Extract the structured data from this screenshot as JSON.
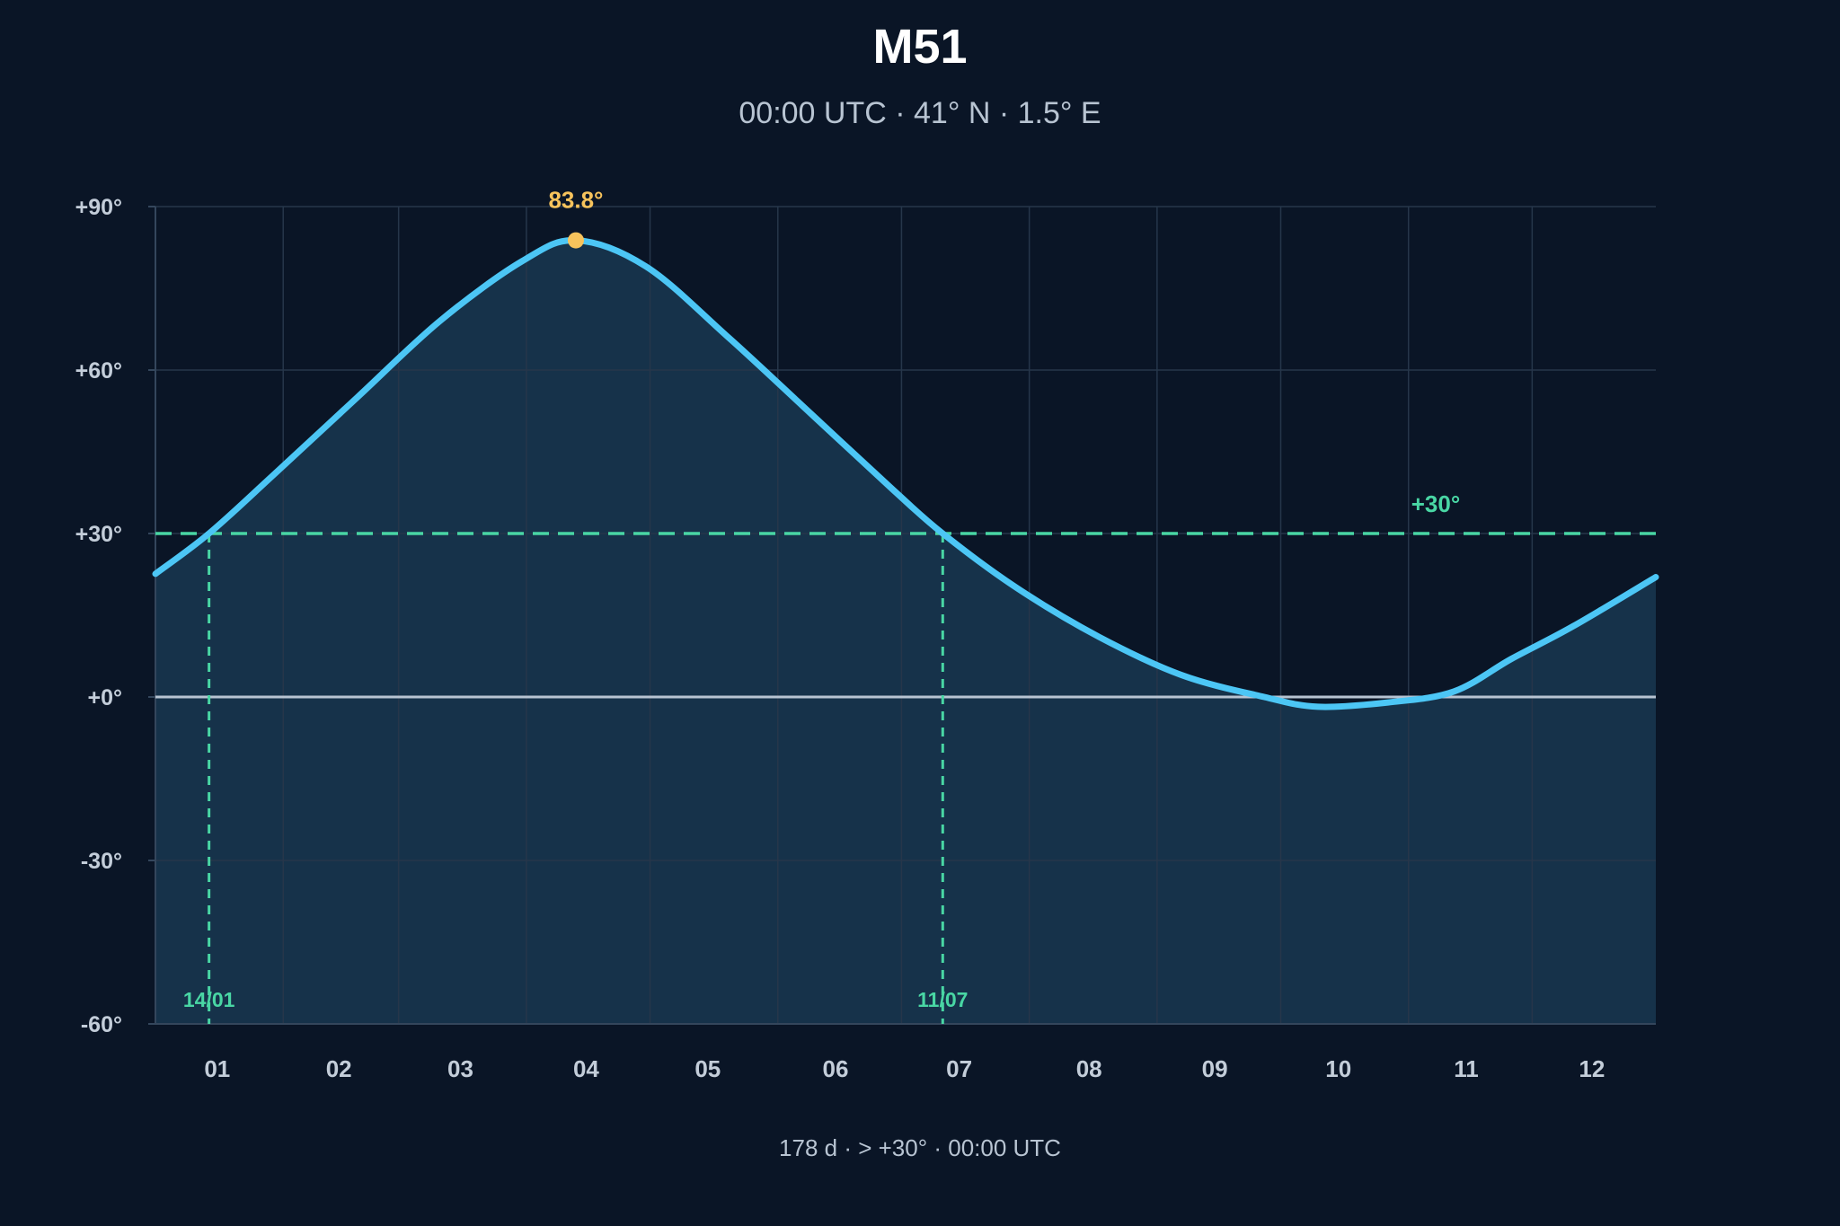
{
  "chart_data": {
    "type": "area",
    "title": "M51",
    "subtitle": "00:00 UTC · 41° N · 1.5° E",
    "footer": "178 d · > +30° · 00:00 UTC",
    "x_labels": [
      "01",
      "02",
      "03",
      "04",
      "05",
      "06",
      "07",
      "08",
      "09",
      "10",
      "11",
      "12"
    ],
    "y_ticks": [
      {
        "value": 90,
        "label": "+90°"
      },
      {
        "value": 60,
        "label": "+60°"
      },
      {
        "value": 30,
        "label": "+30°"
      },
      {
        "value": 0,
        "label": "+0°"
      },
      {
        "value": -30,
        "label": "-30°"
      },
      {
        "value": -60,
        "label": "-60°"
      }
    ],
    "ylim": [
      -60,
      90
    ],
    "xlim_day_of_year": [
      1,
      365
    ],
    "series": [
      {
        "x_day_of_year": [
          1,
          14,
          30,
          50,
          70,
          90,
          103,
          120,
          140,
          160,
          180,
          192,
          210,
          230,
          250,
          270,
          283,
          300,
          316,
          330,
          345,
          365
        ],
        "values": [
          22.6,
          30,
          41,
          55,
          69,
          80,
          83.8,
          79,
          66,
          52,
          38,
          30,
          20,
          11,
          4,
          0,
          -1.8,
          -1,
          1,
          7,
          13,
          22
        ]
      }
    ],
    "peak": {
      "x_day_of_year": 103,
      "value": 83.8,
      "label": "83.8°"
    },
    "threshold": {
      "value": 30,
      "label": "+30°"
    },
    "crossings": [
      {
        "x_day_of_year": 14,
        "label": "14/01"
      },
      {
        "x_day_of_year": 192,
        "label": "11/07"
      }
    ],
    "grid": true,
    "colors": {
      "background": "#0a1526",
      "line": "#4cc6f5",
      "fill": "#16324a",
      "threshold": "#49d6a4",
      "zero_line": "#b7c3d1",
      "peak": "#f7c35c",
      "grid": "#26364a"
    }
  }
}
